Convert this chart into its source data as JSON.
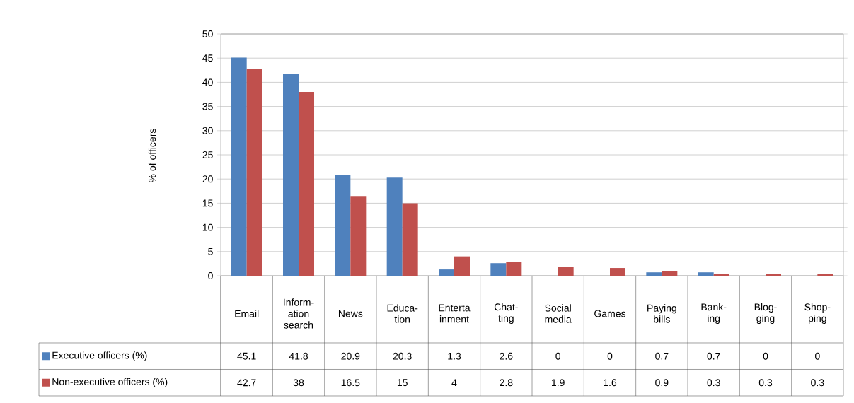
{
  "chart_data": {
    "type": "bar",
    "ylabel": "% of officers",
    "categories": [
      "Email",
      "Inform- ation search",
      "News",
      "Educa- tion",
      "Enterta inment",
      "Chat- ting",
      "Social media",
      "Games",
      "Paying bills",
      "Bank- ing",
      "Blog- ging",
      "Shop- ping"
    ],
    "series": [
      {
        "name": "Executive officers (%)",
        "color": "#4f81bd",
        "values": [
          45.1,
          41.8,
          20.9,
          20.3,
          1.3,
          2.6,
          0,
          0,
          0.7,
          0.7,
          0,
          0
        ]
      },
      {
        "name": "Non-executive officers (%)",
        "color": "#c0504d",
        "values": [
          42.7,
          38,
          16.5,
          15,
          4,
          2.8,
          1.9,
          1.6,
          0.9,
          0.3,
          0.3,
          0.3
        ]
      }
    ],
    "ylim": [
      0,
      50
    ],
    "yticks": [
      0,
      5,
      10,
      15,
      20,
      25,
      30,
      35,
      40,
      45,
      50
    ],
    "grid": "y",
    "data_labels": true,
    "legend": "bottom left"
  }
}
